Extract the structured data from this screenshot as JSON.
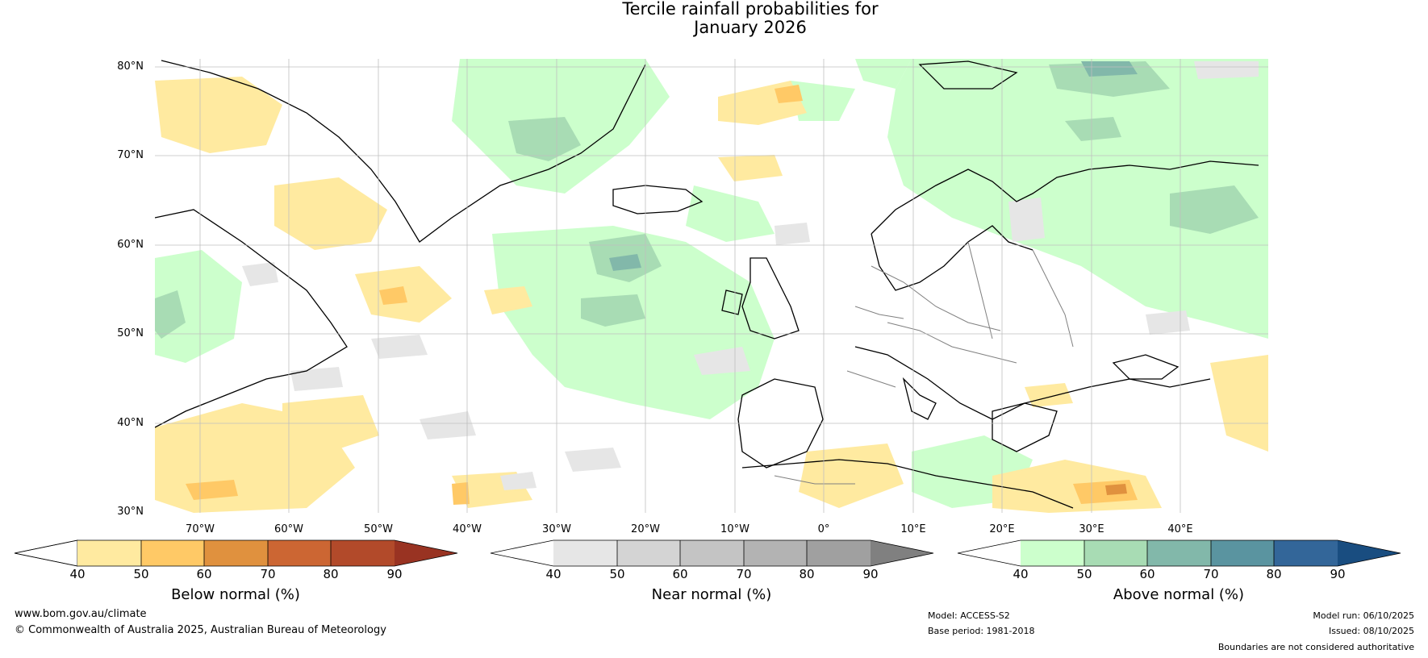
{
  "title": {
    "line1": "Tercile rainfall probabilities for",
    "line2": "January 2026"
  },
  "map": {
    "lat_labels": [
      "80°N",
      "70°N",
      "60°N",
      "50°N",
      "40°N",
      "30°N"
    ],
    "lon_labels": [
      "70°W",
      "60°W",
      "50°W",
      "40°W",
      "30°W",
      "20°W",
      "10°W",
      "0°",
      "10°E",
      "20°E",
      "30°E",
      "40°E"
    ],
    "extent": {
      "lon": [
        -77,
        48
      ],
      "lat": [
        30,
        81
      ]
    }
  },
  "colorbars": [
    {
      "label": "Below normal (%)",
      "ticks": [
        "40",
        "50",
        "60",
        "70",
        "80",
        "90"
      ],
      "colors": [
        "#ffffff",
        "#ffeaa0",
        "#ffc966",
        "#e0913e",
        "#cc6633",
        "#b24a2a",
        "#993322"
      ]
    },
    {
      "label": "Near normal (%)",
      "ticks": [
        "40",
        "50",
        "60",
        "70",
        "80",
        "90"
      ],
      "colors": [
        "#ffffff",
        "#e6e6e6",
        "#d4d4d4",
        "#c4c4c4",
        "#b3b3b3",
        "#a0a0a0",
        "#808080"
      ]
    },
    {
      "label": "Above normal (%)",
      "ticks": [
        "40",
        "50",
        "60",
        "70",
        "80",
        "90"
      ],
      "colors": [
        "#ffffff",
        "#ccffcc",
        "#a8dcb4",
        "#82b8aa",
        "#5a94a0",
        "#336699",
        "#194d80"
      ]
    }
  ],
  "footer": {
    "website": "www.bom.gov.au/climate",
    "copyright": "© Commonwealth of Australia 2025, Australian Bureau of Meteorology",
    "model": "Model: ACCESS-S2",
    "base_period": "Base period: 1981-2018",
    "model_run": "Model run: 06/10/2025",
    "issued": "Issued: 08/10/2025",
    "disclaimer": "Boundaries are not considered authoritative"
  }
}
